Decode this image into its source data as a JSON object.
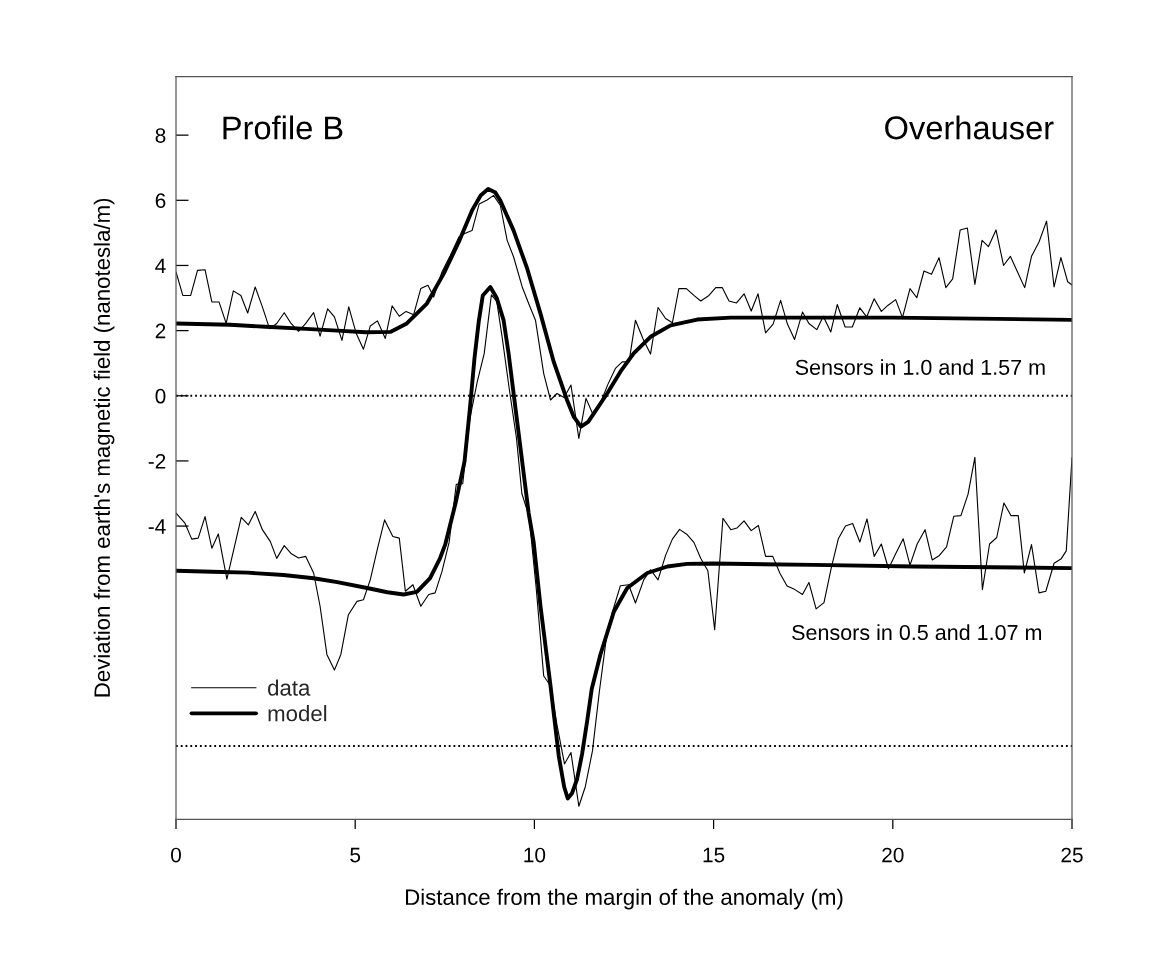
{
  "chart_data": {
    "type": "line",
    "title": "Profile B",
    "subtitle": "Overhauser",
    "xlabel": "Distance from the margin of the anomaly (m)",
    "ylabel": "Deviation from earth's magnetic field (nanotesla/m)",
    "annotations": [
      "Sensors in 1.0 and 1.57 m",
      "Sensors in 0.5 and 1.07 m"
    ],
    "series": [
      {
        "name": "data",
        "color": "#000000",
        "x": [
          0,
          0.19,
          0.41,
          0.6,
          0.81,
          1.0,
          1.2,
          1.4,
          1.6,
          1.81,
          2.0,
          2.21,
          2.41,
          2.61,
          2.81,
          3.02,
          3.21,
          3.42,
          3.62,
          3.84,
          4.02,
          4.23,
          4.42,
          4.63,
          4.82,
          5.03,
          5.23,
          5.42,
          5.62,
          5.84,
          6.03,
          6.23,
          6.42,
          6.63,
          6.83,
          7.03,
          7.19,
          7.42,
          7.65,
          7.89,
          8.07,
          8.26,
          8.46,
          8.68,
          8.86,
          9.05,
          9.24,
          9.42,
          9.66,
          9.84,
          10.03,
          10.26,
          10.45,
          10.63,
          10.83,
          11.02,
          11.24,
          11.44,
          11.64,
          11.85,
          12.05,
          12.26,
          12.45,
          12.64,
          12.82,
          13.03,
          13.24,
          13.45,
          13.66,
          13.85,
          14.03,
          14.24,
          14.45,
          14.64,
          14.87,
          15.06,
          15.24,
          15.43,
          15.64,
          15.85,
          16.05,
          16.24,
          16.45,
          16.66,
          16.87,
          17.06,
          17.26,
          17.48,
          17.66,
          17.88,
          18.06,
          18.27,
          18.45,
          18.67,
          18.87,
          19.08,
          19.27,
          19.48,
          19.68,
          19.87,
          20.08,
          20.27,
          20.48,
          20.67,
          20.87,
          21.08,
          21.29,
          21.48,
          21.67,
          21.88,
          22.08,
          22.29,
          22.49,
          22.67,
          22.88,
          23.09,
          23.28,
          23.48,
          23.68,
          23.87,
          24.08,
          24.29,
          24.5,
          24.69,
          24.88,
          25
        ],
        "values": [
          3.8,
          3.08,
          3.08,
          3.85,
          3.87,
          2.88,
          2.88,
          2.22,
          3.22,
          3.08,
          2.54,
          3.34,
          2.73,
          2.06,
          2.22,
          2.55,
          2.22,
          1.98,
          2.22,
          2.55,
          1.83,
          2.67,
          2.42,
          1.7,
          2.73,
          1.91,
          1.43,
          2.14,
          2.3,
          1.76,
          2.76,
          2.44,
          2.59,
          2.49,
          3.29,
          3.39,
          3.03,
          3.8,
          4.3,
          4.87,
          4.99,
          5.07,
          5.89,
          6.01,
          6.15,
          5.84,
          4.77,
          4.26,
          3.34,
          2.83,
          2.32,
          0.68,
          -0.13,
          0.07,
          -0.05,
          0.33,
          -1.31,
          -0.08,
          -0.59,
          -0.2,
          0.35,
          0.84,
          1.04,
          1.04,
          2.32,
          1.75,
          1.28,
          2.71,
          2.37,
          2.24,
          3.29,
          3.29,
          3.08,
          2.91,
          3.08,
          3.32,
          3.32,
          2.91,
          2.85,
          3.13,
          2.6,
          3.13,
          1.93,
          2.2,
          2.93,
          2.2,
          1.73,
          2.57,
          2.22,
          2.03,
          2.44,
          1.96,
          2.8,
          2.11,
          2.11,
          2.7,
          2.42,
          2.98,
          2.59,
          2.78,
          2.95,
          2.4,
          3.29,
          3.01,
          3.83,
          3.73,
          4.24,
          3.32,
          3.59,
          5.09,
          5.15,
          3.42,
          4.77,
          4.58,
          5.09,
          4.0,
          4.28,
          3.8,
          3.32,
          4.28,
          4.72,
          5.36,
          3.34,
          4.24,
          3.5,
          3.4
        ]
      },
      {
        "name": "model",
        "color": "#000000",
        "x": [
          0,
          1.5,
          2.5,
          3.5,
          4.5,
          5.3,
          5.98,
          6.44,
          7.0,
          7.47,
          7.89,
          8.26,
          8.5,
          8.71,
          8.9,
          9.05,
          9.42,
          9.8,
          10.17,
          10.54,
          10.91,
          11.1,
          11.3,
          11.5,
          11.66,
          12.03,
          12.4,
          12.77,
          13.24,
          13.8,
          14.54,
          15.48,
          20,
          25
        ],
        "values": [
          2.22,
          2.18,
          2.12,
          2.06,
          2.0,
          1.95,
          1.96,
          2.22,
          2.83,
          3.75,
          4.72,
          5.69,
          6.15,
          6.35,
          6.25,
          5.99,
          5.07,
          3.9,
          2.52,
          1.04,
          -0.13,
          -0.65,
          -0.95,
          -0.8,
          -0.54,
          0.07,
          0.74,
          1.3,
          1.81,
          2.16,
          2.34,
          2.4,
          2.4,
          2.33
        ]
      },
      {
        "color": "#000000",
        "x": [
          0,
          0.25,
          0.44,
          0.62,
          0.81,
          1.0,
          1.18,
          1.42,
          1.82,
          2.02,
          2.21,
          2.41,
          2.63,
          2.81,
          3.02,
          3.22,
          3.42,
          3.62,
          3.84,
          4.02,
          4.21,
          4.42,
          4.6,
          4.81,
          5.05,
          5.23,
          5.42,
          5.62,
          5.82,
          6.05,
          6.23,
          6.4,
          6.61,
          6.83,
          7.05,
          7.23,
          7.42,
          7.62,
          7.82,
          8.0,
          8.2,
          8.4,
          8.6,
          8.8,
          8.95,
          9.1,
          9.3,
          9.5,
          9.65,
          9.85,
          10.05,
          10.26,
          10.45,
          10.63,
          10.84,
          11.02,
          11.24,
          11.42,
          11.62,
          11.81,
          12.0,
          12.17,
          12.4,
          12.63,
          12.82,
          13.05,
          13.24,
          13.45,
          13.66,
          13.85,
          14.05,
          14.25,
          14.45,
          14.64,
          14.84,
          15.03,
          15.26,
          15.48,
          15.65,
          15.85,
          16.05,
          16.25,
          16.45,
          16.65,
          16.85,
          17.05,
          17.27,
          17.48,
          17.66,
          17.86,
          18.08,
          18.28,
          18.48,
          18.68,
          18.88,
          19.08,
          19.28,
          19.48,
          19.68,
          19.88,
          20.08,
          20.29,
          20.48,
          20.68,
          20.9,
          21.1,
          21.3,
          21.5,
          21.7,
          21.9,
          22.1,
          22.29,
          22.5,
          22.7,
          22.9,
          23.1,
          23.3,
          23.5,
          23.67,
          23.87,
          24.08,
          24.27,
          24.5,
          24.7,
          24.84,
          25
        ],
        "values": [
          -3.6,
          -3.91,
          -4.4,
          -4.37,
          -3.71,
          -4.68,
          -4.24,
          -5.63,
          -3.73,
          -3.96,
          -3.55,
          -4.11,
          -4.47,
          -4.99,
          -4.6,
          -4.85,
          -4.98,
          -4.93,
          -5.44,
          -6.46,
          -7.94,
          -8.42,
          -7.94,
          -6.72,
          -6.31,
          -6.26,
          -5.65,
          -4.7,
          -3.81,
          -4.32,
          -4.37,
          -6.0,
          -5.8,
          -6.46,
          -6.1,
          -6.05,
          -5.4,
          -4.5,
          -2.72,
          -2.7,
          -0.7,
          0.4,
          1.3,
          3.1,
          2.9,
          1.8,
          0.2,
          -1.3,
          -3.0,
          -3.7,
          -5.9,
          -8.6,
          -8.9,
          -10.1,
          -11.3,
          -10.95,
          -12.6,
          -12.0,
          -10.9,
          -9.1,
          -7.5,
          -6.66,
          -5.83,
          -5.8,
          -6.36,
          -5.65,
          -5.34,
          -5.65,
          -4.9,
          -4.4,
          -4.1,
          -4.25,
          -4.5,
          -4.99,
          -5.37,
          -7.18,
          -3.76,
          -4.11,
          -4.06,
          -3.84,
          -4.14,
          -3.98,
          -4.93,
          -4.93,
          -5.45,
          -5.84,
          -5.95,
          -6.1,
          -5.73,
          -6.54,
          -6.35,
          -5.3,
          -4.39,
          -4.0,
          -3.92,
          -4.49,
          -3.78,
          -4.93,
          -4.55,
          -5.31,
          -4.85,
          -4.39,
          -5.2,
          -4.55,
          -4.11,
          -5.04,
          -4.9,
          -4.64,
          -3.7,
          -3.68,
          -3.02,
          -1.89,
          -5.95,
          -4.55,
          -4.35,
          -3.29,
          -3.68,
          -3.68,
          -5.44,
          -4.57,
          -6.05,
          -6.0,
          -5.14,
          -5.0,
          -4.76,
          -1.9
        ]
      },
      {
        "color": "#000000",
        "x": [
          0,
          1,
          2,
          3,
          3.84,
          4.5,
          5.33,
          5.9,
          6.35,
          6.72,
          7.09,
          7.37,
          7.51,
          7.8,
          8.05,
          8.2,
          8.33,
          8.45,
          8.56,
          8.77,
          8.95,
          9.14,
          9.28,
          9.42,
          9.56,
          9.7,
          9.84,
          9.98,
          10.17,
          10.45,
          10.68,
          10.83,
          10.93,
          11.05,
          11.19,
          11.33,
          11.47,
          11.6,
          11.84,
          12.22,
          12.59,
          13.15,
          13.71,
          14.26,
          15.0,
          17.8,
          20.6,
          25
        ],
        "values": [
          -5.37,
          -5.4,
          -5.43,
          -5.5,
          -5.6,
          -5.72,
          -5.9,
          -6.03,
          -6.1,
          -6.02,
          -5.6,
          -4.98,
          -4.57,
          -3.3,
          -2.02,
          -0.4,
          1.17,
          2.3,
          3.08,
          3.34,
          3.0,
          2.32,
          1.3,
          0.07,
          -1.15,
          -2.38,
          -3.6,
          -4.5,
          -6.46,
          -8.91,
          -11.06,
          -12.0,
          -12.36,
          -12.2,
          -11.77,
          -11.0,
          -10.0,
          -9.0,
          -7.95,
          -6.62,
          -5.9,
          -5.44,
          -5.24,
          -5.16,
          -5.15,
          -5.19,
          -5.24,
          -5.29
        ]
      }
    ],
    "xlim": [
      0,
      25
    ],
    "xticks": [
      0,
      5,
      10,
      15,
      20,
      25
    ],
    "ylim": [
      -13,
      9.8
    ],
    "yticks": [
      -4,
      -2,
      0,
      2,
      4,
      6,
      8
    ],
    "ref_lines": [
      {
        "axis": "y",
        "value": 0,
        "line_style": "dotted"
      },
      {
        "axis": "y",
        "value": -10.75,
        "line_style": "dotted"
      }
    ],
    "legend": "bottom left"
  }
}
